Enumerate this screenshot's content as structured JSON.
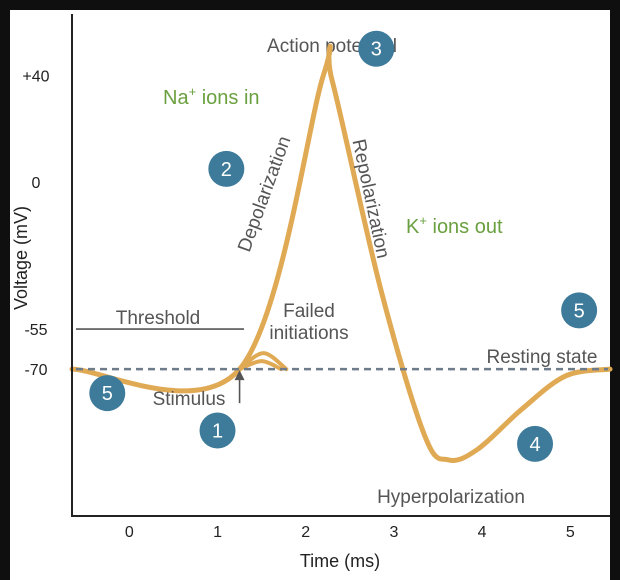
{
  "chart_data": {
    "type": "line",
    "title": "Action potential",
    "xlabel": "Time (ms)",
    "ylabel": "Voltage (mV)",
    "xlim": [
      -0.65,
      5.45
    ],
    "ylim": [
      -125,
      63
    ],
    "x_ticks": [
      0,
      1,
      2,
      3,
      4,
      5
    ],
    "y_ticks": [
      {
        "value": 40,
        "label": "+40"
      },
      {
        "value": 0,
        "label": "0"
      },
      {
        "value": -55,
        "label": "-55"
      },
      {
        "value": -70,
        "label": "-70"
      }
    ],
    "threshold": {
      "value": -55,
      "label": "Threshold",
      "x_end": 1.3
    },
    "resting": {
      "value": -70,
      "label": "Resting state"
    },
    "stimulus": {
      "x": 1.25,
      "label": "Stimulus"
    },
    "series": [
      {
        "name": "",
        "points": [
          [
            -0.65,
            -70
          ],
          [
            1.25,
            -70
          ],
          [
            2.2,
            40
          ],
          [
            2.3,
            38
          ],
          [
            2.85,
            -40
          ],
          [
            3.35,
            -95
          ],
          [
            3.62,
            -104
          ],
          [
            3.95,
            -100
          ],
          [
            4.45,
            -85
          ],
          [
            4.95,
            -72.5
          ],
          [
            5.45,
            -70
          ]
        ]
      },
      {
        "name": "",
        "points": [
          [
            1.25,
            -70
          ],
          [
            1.52,
            -64
          ],
          [
            1.78,
            -70
          ]
        ]
      },
      {
        "name": "",
        "points": [
          [
            1.25,
            -70
          ],
          [
            1.5,
            -67
          ],
          [
            1.72,
            -70
          ]
        ]
      }
    ],
    "annotations": {
      "failed_initiations": [
        "Failed",
        "initiations"
      ],
      "depolarization": "Depolarization",
      "repolarization": "Repolarization",
      "hyperpolarization": "Hyperpolarization",
      "na_ions": {
        "base": "Na",
        "sup": "+",
        "rest": " ions in"
      },
      "k_ions": {
        "base": "K",
        "sup": "+",
        "rest": " ions out"
      }
    },
    "markers": [
      {
        "label": "1",
        "x": 1.0,
        "y": -93
      },
      {
        "label": "2",
        "x": 1.1,
        "y": 5
      },
      {
        "label": "3",
        "x": 2.8,
        "y": 50
      },
      {
        "label": "4",
        "x": 4.6,
        "y": -98
      },
      {
        "label": "5",
        "x": 5.1,
        "y": -48
      },
      {
        "label": "5",
        "x": -0.25,
        "y": -79
      }
    ],
    "colors": {
      "curve": "#e0aa55",
      "marker": "#3e7b9b",
      "text": "#555555",
      "ions": "#6aa03f",
      "resting_line": "#6e7c8a"
    }
  }
}
